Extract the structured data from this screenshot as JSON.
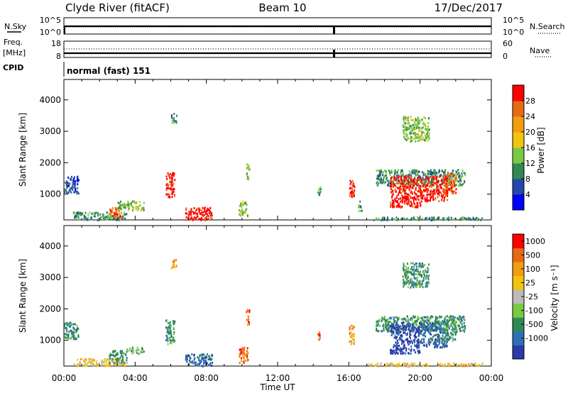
{
  "header": {
    "station": "Clyde River (fitACF)",
    "beam": "Beam 10",
    "date": "17/Dec/2017"
  },
  "noise_panel": {
    "left_label": "N.Sky",
    "left_ticks": [
      "10^5",
      "10^0"
    ],
    "right_label": "N.Search",
    "right_ticks": [
      "10^5",
      "10^0"
    ]
  },
  "freq_panel": {
    "left_label_1": "Freq.",
    "left_label_2": "[MHz]",
    "left_ticks": [
      "18",
      "8"
    ],
    "right_label": "Nave",
    "right_ticks": [
      "60",
      "0"
    ]
  },
  "cpid": {
    "label": "CPID",
    "value": "normal (fast) 151"
  },
  "chart_data": {
    "type": "heatmap",
    "x_axis": {
      "label": "Time UT",
      "range_hours": [
        0,
        24
      ],
      "ticks": [
        "00:00",
        "04:00",
        "08:00",
        "12:00",
        "16:00",
        "20:00",
        "00:00"
      ]
    },
    "y_axis": {
      "label": "Slant Range [km]",
      "range_km": [
        180,
        4650
      ],
      "ticks": [
        1000,
        2000,
        3000,
        4000
      ]
    },
    "panels": [
      {
        "name": "power",
        "colorbar_label": "Power [dB]",
        "colorbar_ticks": [
          "4",
          "8",
          "12",
          "16",
          "20",
          "24",
          "28"
        ],
        "colors": [
          "#0000ff",
          "#2448a8",
          "#2f8a52",
          "#7ac943",
          "#f1c40f",
          "#f39c12",
          "#e86a12",
          "#ff0000"
        ],
        "regions": [
          {
            "t": [
              0.0,
              0.8
            ],
            "r": [
              1050,
              1600
            ],
            "level": 1
          },
          {
            "t": [
              0.5,
              3.5
            ],
            "r": [
              200,
              450
            ],
            "level": 2
          },
          {
            "t": [
              2.5,
              3.2
            ],
            "r": [
              250,
              600
            ],
            "level": 6
          },
          {
            "t": [
              3.0,
              4.5
            ],
            "r": [
              500,
              800
            ],
            "level": 3
          },
          {
            "t": [
              5.7,
              6.2
            ],
            "r": [
              900,
              1700
            ],
            "level": 7
          },
          {
            "t": [
              6.0,
              6.3
            ],
            "r": [
              3300,
              3600
            ],
            "level": 2
          },
          {
            "t": [
              6.8,
              8.3
            ],
            "r": [
              200,
              600
            ],
            "level": 7
          },
          {
            "t": [
              9.8,
              10.3
            ],
            "r": [
              300,
              800
            ],
            "level": 3
          },
          {
            "t": [
              10.2,
              10.4
            ],
            "r": [
              1500,
              2000
            ],
            "level": 3
          },
          {
            "t": [
              14.2,
              14.4
            ],
            "r": [
              1000,
              1300
            ],
            "level": 2
          },
          {
            "t": [
              16.0,
              16.3
            ],
            "r": [
              900,
              1500
            ],
            "level": 7
          },
          {
            "t": [
              16.5,
              16.7
            ],
            "r": [
              500,
              800
            ],
            "level": 2
          },
          {
            "t": [
              17.5,
              22.5
            ],
            "r": [
              1300,
              1800
            ],
            "level": 2
          },
          {
            "t": [
              18.3,
              20.0
            ],
            "r": [
              600,
              1600
            ],
            "level": 7
          },
          {
            "t": [
              20.0,
              21.5
            ],
            "r": [
              800,
              1600
            ],
            "level": 7
          },
          {
            "t": [
              21.3,
              22.0
            ],
            "r": [
              1000,
              1700
            ],
            "level": 6
          },
          {
            "t": [
              19.0,
              20.5
            ],
            "r": [
              2700,
              3500
            ],
            "level": 3
          },
          {
            "t": [
              17.0,
              23.5
            ],
            "r": [
              200,
              300
            ],
            "level": 2
          }
        ]
      },
      {
        "name": "velocity",
        "colorbar_label": "Velocity [m s⁻¹]",
        "colorbar_ticks": [
          "1000",
          "500",
          "100",
          "25",
          "-25",
          "-100",
          "-500",
          "-1000"
        ],
        "colors": [
          "#2b3aa8",
          "#2f6fb8",
          "#2f8a52",
          "#7ac943",
          "#bbbbbb",
          "#f1c40f",
          "#f39c12",
          "#e86a12",
          "#ff0000"
        ],
        "regions": [
          {
            "t": [
              0.0,
              0.8
            ],
            "r": [
              1050,
              1600
            ],
            "level": 2
          },
          {
            "t": [
              0.5,
              3.5
            ],
            "r": [
              200,
              450
            ],
            "level": 5
          },
          {
            "t": [
              2.5,
              3.5
            ],
            "r": [
              300,
              700
            ],
            "level": 2
          },
          {
            "t": [
              3.5,
              4.5
            ],
            "r": [
              600,
              800
            ],
            "level": 3
          },
          {
            "t": [
              5.7,
              6.2
            ],
            "r": [
              900,
              1700
            ],
            "level": 2
          },
          {
            "t": [
              6.0,
              6.3
            ],
            "r": [
              3300,
              3600
            ],
            "level": 6
          },
          {
            "t": [
              6.8,
              8.3
            ],
            "r": [
              200,
              600
            ],
            "level": 1
          },
          {
            "t": [
              9.8,
              10.3
            ],
            "r": [
              300,
              800
            ],
            "level": 7
          },
          {
            "t": [
              10.2,
              10.4
            ],
            "r": [
              1500,
              2000
            ],
            "level": 7
          },
          {
            "t": [
              14.2,
              14.4
            ],
            "r": [
              1000,
              1300
            ],
            "level": 7
          },
          {
            "t": [
              16.0,
              16.3
            ],
            "r": [
              900,
              1500
            ],
            "level": 6
          },
          {
            "t": [
              17.5,
              22.5
            ],
            "r": [
              1300,
              1800
            ],
            "level": 2
          },
          {
            "t": [
              18.3,
              20.0
            ],
            "r": [
              600,
              1600
            ],
            "level": 0
          },
          {
            "t": [
              20.0,
              21.5
            ],
            "r": [
              800,
              1600
            ],
            "level": 1
          },
          {
            "t": [
              21.3,
              22.0
            ],
            "r": [
              1000,
              1700
            ],
            "level": 2
          },
          {
            "t": [
              19.0,
              20.5
            ],
            "r": [
              2700,
              3500
            ],
            "level": 2
          },
          {
            "t": [
              17.0,
              23.5
            ],
            "r": [
              200,
              300
            ],
            "level": 5
          }
        ]
      }
    ]
  }
}
